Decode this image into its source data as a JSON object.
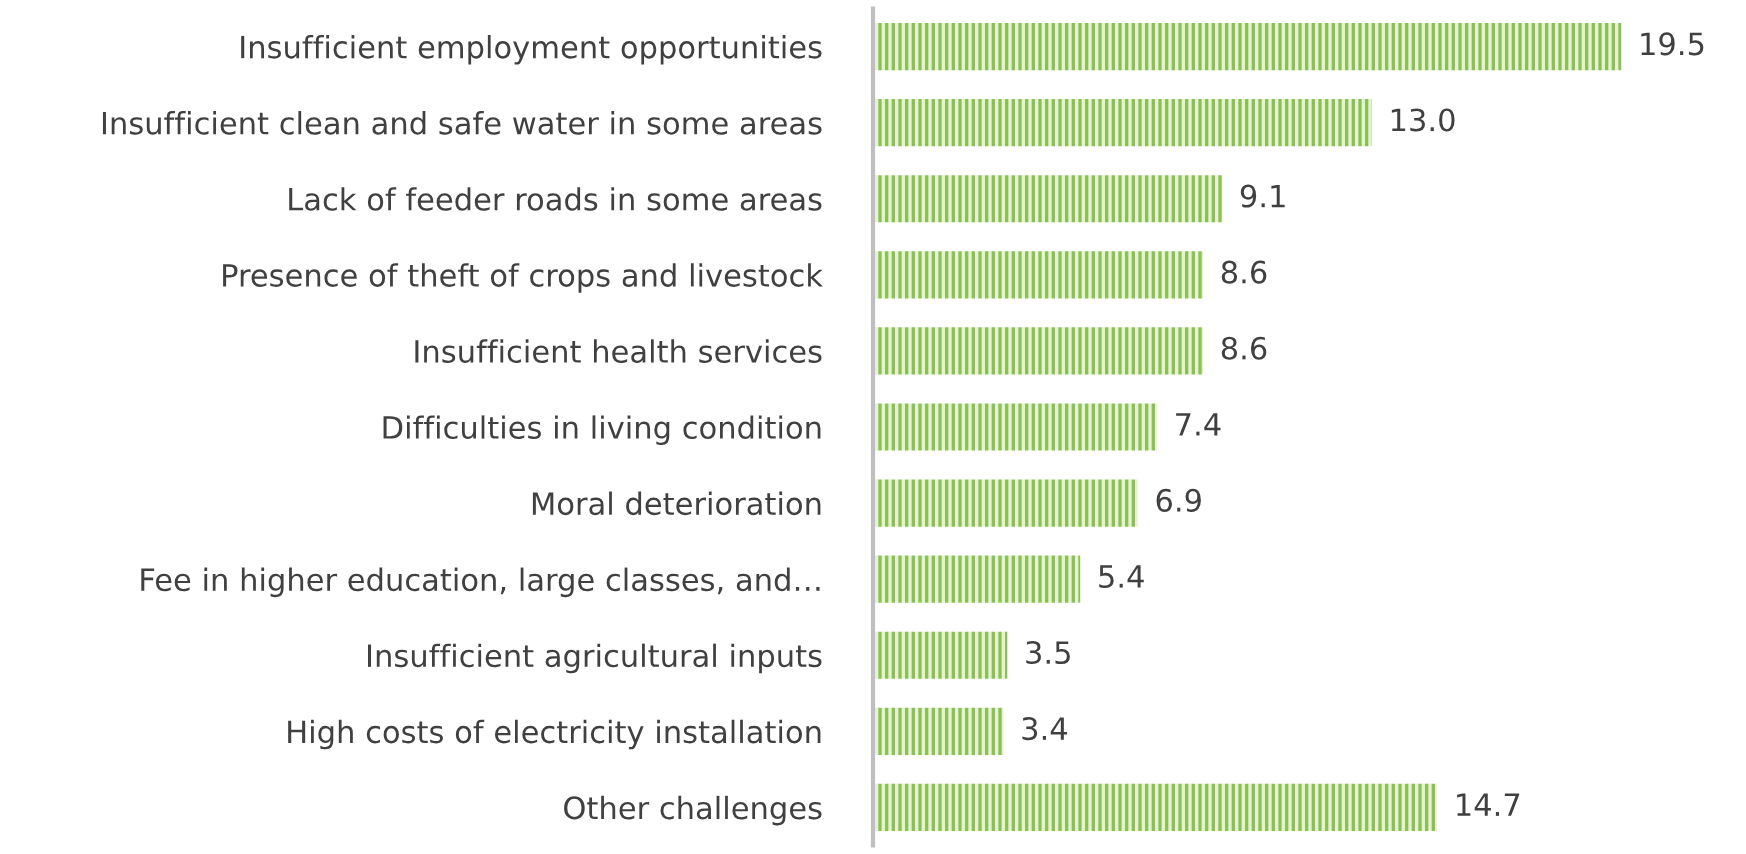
{
  "chart_data": {
    "type": "bar",
    "orientation": "horizontal",
    "categories": [
      "Insufficient employment opportunities",
      "Insufficient clean and safe water in some areas",
      "Lack of feeder roads in some areas",
      "Presence of theft of crops and livestock",
      "Insufficient health services",
      "Difficulties in living condition",
      "Moral deterioration",
      "Fee in higher education, large classes, and…",
      "Insufficient agricultural inputs",
      "High costs of electricity installation",
      "Other challenges"
    ],
    "values": [
      19.5,
      13.0,
      9.1,
      8.6,
      8.6,
      7.4,
      6.9,
      5.4,
      3.5,
      3.4,
      14.7
    ],
    "value_labels": [
      "19.5",
      "13.0",
      "9.1",
      "8.6",
      "8.6",
      "7.4",
      "6.9",
      "5.4",
      "3.5",
      "3.4",
      "14.7"
    ],
    "color": "#8cc152"
  }
}
